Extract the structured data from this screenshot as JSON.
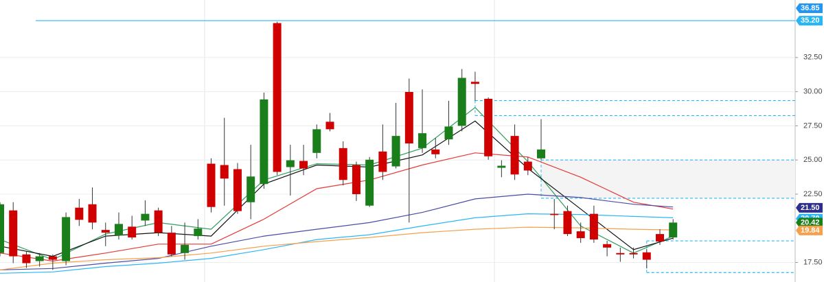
{
  "chart_data": {
    "type": "candlestick",
    "up_color": "#1a7f1a",
    "down_color": "#d00000",
    "ylim": [
      16.07,
      36.71
    ],
    "yticks": [
      {
        "value": 17.5,
        "label": "17.50"
      },
      {
        "value": 22.5,
        "label": "22.50"
      },
      {
        "value": 25,
        "label": "25.00"
      },
      {
        "value": 27.5,
        "label": "27.50"
      },
      {
        "value": 30,
        "label": "30.00"
      },
      {
        "value": 32.5,
        "label": "32.50"
      }
    ],
    "grid": true,
    "open": [
      18.19,
      21.31,
      18.09,
      17.6,
      17.95,
      17.6,
      21.51,
      21.76,
      19.88,
      19.48,
      20.12,
      20.57,
      21.31,
      19.68,
      18.19,
      19.43,
      24.73,
      24.63,
      24.33,
      21.91,
      23.24,
      35.02,
      24.48,
      24.93,
      25.52,
      27.8,
      25.87,
      24.63,
      21.66,
      25.62,
      24.53,
      29.98,
      25.87,
      25.77,
      26.51,
      27.5,
      30.72,
      29.48,
      24.43,
      26.76,
      24.88,
      25.12,
      21.06,
      21.26,
      19.78,
      21.06,
      18.84,
      18.19,
      18.19,
      18.24,
      19.58,
      19.33
    ],
    "high": [
      21.91,
      21.91,
      18.29,
      18.19,
      18.09,
      21.16,
      22.15,
      22.99,
      20.42,
      21.16,
      20.92,
      22.05,
      21.51,
      20.17,
      20.42,
      20.67,
      25.12,
      28.09,
      24.78,
      26.11,
      29.93,
      35.12,
      26.11,
      26.11,
      27.6,
      28.44,
      26.36,
      24.88,
      25.22,
      27.6,
      29.18,
      30.96,
      30.17,
      26.61,
      29.33,
      31.66,
      31.46,
      29.58,
      24.98,
      27.6,
      25.22,
      27.99,
      22.15,
      21.66,
      20.42,
      21.66,
      19.08,
      18.59,
      18.59,
      18.49,
      19.93,
      20.67
    ],
    "low": [
      17.95,
      17.45,
      17.1,
      17.2,
      16.96,
      17.3,
      20.17,
      19.93,
      18.69,
      19.18,
      19.18,
      20.17,
      19.43,
      17.95,
      17.7,
      19.18,
      21.16,
      21.66,
      21.06,
      20.67,
      22.9,
      23.89,
      22.4,
      23.89,
      25.12,
      27.1,
      23.14,
      22.0,
      21.56,
      23.54,
      24.38,
      20.42,
      25.52,
      25.12,
      26.11,
      27.1,
      29.33,
      25.02,
      23.74,
      23.54,
      23.89,
      25.02,
      19.93,
      19.43,
      18.94,
      18.94,
      17.95,
      17.55,
      17.8,
      17.06,
      18.79,
      19.18
    ],
    "close": [
      21.76,
      17.95,
      17.45,
      17.95,
      17.7,
      20.82,
      20.62,
      20.42,
      19.68,
      20.32,
      19.33,
      21.06,
      19.68,
      18.09,
      18.79,
      19.98,
      21.56,
      23.64,
      21.26,
      23.79,
      29.43,
      24.13,
      24.98,
      24.38,
      27.25,
      27.25,
      23.54,
      22.5,
      25.02,
      24.13,
      26.76,
      26.21,
      26.96,
      25.42,
      27.45,
      31.01,
      30.57,
      25.27,
      24.58,
      23.94,
      24.23,
      25.77,
      20.97,
      19.58,
      19.28,
      19.18,
      18.59,
      18.09,
      18.09,
      17.7,
      19.03,
      20.42
    ],
    "series": [
      {
        "color": "#2e9e5b",
        "x": [
          0,
          4,
          8,
          12,
          16,
          20,
          24,
          28,
          32,
          36,
          40,
          44,
          48,
          51
        ],
        "values": [
          19.18,
          17.7,
          19.58,
          20.42,
          19.93,
          23.54,
          24.73,
          24.63,
          25.87,
          28.84,
          24.88,
          20.17,
          18.19,
          19.43
        ]
      },
      {
        "color": "#111111",
        "x": [
          0,
          4,
          8,
          12,
          16,
          20,
          24,
          28,
          32,
          36,
          40,
          44,
          48,
          51
        ],
        "values": [
          18.69,
          17.95,
          19.43,
          19.68,
          19.43,
          23.24,
          24.63,
          24.48,
          25.37,
          27.85,
          24.38,
          21.41,
          18.44,
          19.28
        ]
      },
      {
        "color": "#e53935",
        "x": [
          0,
          4,
          8,
          12,
          16,
          20,
          24,
          28,
          32,
          36,
          40,
          44,
          48,
          51
        ],
        "values": [
          18.19,
          17.6,
          18.19,
          18.84,
          18.84,
          20.67,
          22.9,
          23.54,
          24.63,
          25.52,
          25.22,
          23.74,
          21.91,
          21.41
        ]
      },
      {
        "color": "#4a4aa8",
        "x": [
          0,
          4,
          8,
          12,
          16,
          20,
          24,
          28,
          32,
          36,
          40,
          44,
          48,
          51
        ],
        "values": [
          16.96,
          17.06,
          17.45,
          17.8,
          18.69,
          19.43,
          19.93,
          20.42,
          21.16,
          22.15,
          22.5,
          22.25,
          21.76,
          21.56
        ]
      },
      {
        "color": "#29b6f6",
        "x": [
          0,
          4,
          8,
          12,
          16,
          20,
          24,
          28,
          32,
          36,
          40,
          44,
          48,
          51
        ],
        "values": [
          16.71,
          16.81,
          17.2,
          17.45,
          17.8,
          18.44,
          19.18,
          19.53,
          20.17,
          20.77,
          21.06,
          21.01,
          20.87,
          20.77
        ]
      },
      {
        "color": "#f5a04a",
        "x": [
          0,
          4,
          8,
          12,
          16,
          20,
          24,
          28,
          32,
          36,
          40,
          44,
          48,
          51
        ],
        "values": [
          16.96,
          17.45,
          17.7,
          17.85,
          18.19,
          18.69,
          19.03,
          19.33,
          19.68,
          19.93,
          20.08,
          20.03,
          19.93,
          19.88
        ]
      }
    ],
    "levels": [
      {
        "value": 35.2,
        "from": 2.7,
        "style": "solid"
      },
      {
        "value": 29.35,
        "from": 36,
        "style": "dashed"
      },
      {
        "value": 28.25,
        "from": 36,
        "style": "dashed"
      },
      {
        "value": 25.0,
        "from": 41,
        "style": "dashed"
      },
      {
        "value": 22.2,
        "from": 41,
        "style": "dashed"
      },
      {
        "value": 19.08,
        "from": 49,
        "style": "dashed"
      },
      {
        "value": 16.76,
        "from": 49,
        "style": "dashed"
      }
    ],
    "price_labels": [
      {
        "value": 36.85,
        "label": "36.85",
        "color": "#2196f3"
      },
      {
        "value": 35.2,
        "label": "35.20",
        "color": "#29b6f6"
      },
      {
        "value": 21.5,
        "label": "21.50",
        "color": "#2e2e8c"
      },
      {
        "value": 20.7,
        "label": "20.70",
        "color": "#29b6f6"
      },
      {
        "value": 20.42,
        "label": "20.42",
        "color": "#1a7f1a"
      },
      {
        "value": 19.84,
        "label": "19.84",
        "color": "#f5a04a"
      }
    ]
  }
}
